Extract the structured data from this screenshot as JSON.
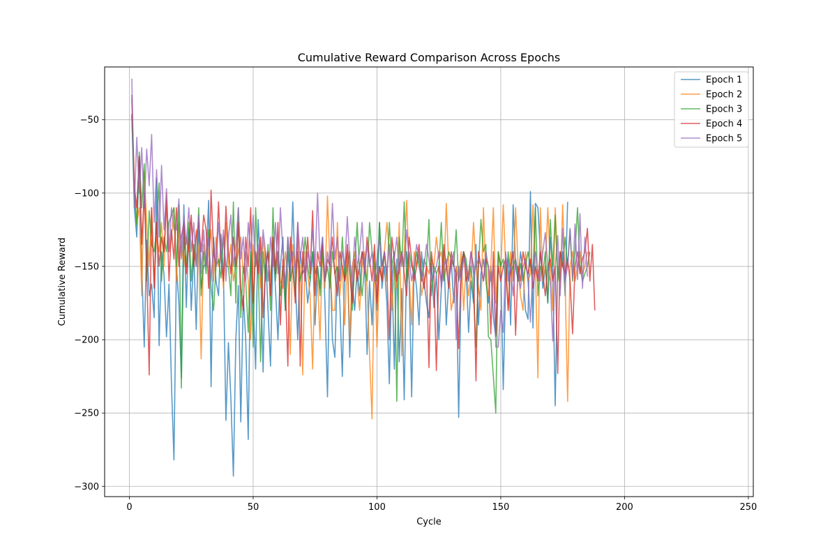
{
  "chart_data": {
    "type": "line",
    "title": "Cumulative Reward Comparison Across Epochs",
    "xlabel": "Cycle",
    "ylabel": "Cumulative Reward",
    "xlim": [
      -10,
      252
    ],
    "ylim": [
      -307,
      -14
    ],
    "xticks": [
      0,
      50,
      100,
      150,
      200,
      250
    ],
    "yticks": [
      -300,
      -250,
      -200,
      -150,
      -100,
      -50
    ],
    "grid": true,
    "legend_position": "top-right",
    "series": [
      {
        "name": "Epoch 1",
        "color": "#1f77b4",
        "x_start": 1,
        "values": [
          -46,
          -110,
          -130,
          -75,
          -150,
          -205,
          -132,
          -170,
          -162,
          -185,
          -90,
          -204,
          -140,
          -156,
          -198,
          -162,
          -230,
          -282,
          -150,
          -175,
          -226,
          -108,
          -178,
          -124,
          -180,
          -140,
          -193,
          -120,
          -165,
          -150,
          -148,
          -105,
          -232,
          -130,
          -160,
          -170,
          -128,
          -156,
          -255,
          -202,
          -240,
          -293,
          -200,
          -163,
          -256,
          -170,
          -200,
          -268,
          -140,
          -175,
          -220,
          -118,
          -150,
          -222,
          -140,
          -180,
          -218,
          -135,
          -165,
          -200,
          -150,
          -130,
          -180,
          -140,
          -160,
          -106,
          -160,
          -200,
          -140,
          -155,
          -150,
          -175,
          -160,
          -140,
          -190,
          -150,
          -165,
          -130,
          -175,
          -239,
          -140,
          -200,
          -212,
          -150,
          -175,
          -225,
          -150,
          -140,
          -212,
          -160,
          -180,
          -150,
          -170,
          -140,
          -145,
          -210,
          -160,
          -190,
          -150,
          -180,
          -120,
          -165,
          -150,
          -175,
          -230,
          -150,
          -220,
          -145,
          -215,
          -165,
          -241,
          -140,
          -160,
          -239,
          -150,
          -165,
          -190,
          -140,
          -160,
          -175,
          -185,
          -148,
          -178,
          -155,
          -200,
          -165,
          -140,
          -190,
          -160,
          -145,
          -175,
          -150,
          -253,
          -160,
          -140,
          -150,
          -195,
          -160,
          -175,
          -135,
          -190,
          -155,
          -145,
          -160,
          -175,
          -150,
          -185,
          -198,
          -140,
          -150,
          -234,
          -160,
          -145,
          -190,
          -108,
          -150,
          -160,
          -140,
          -155,
          -180,
          -186,
          -99,
          -192,
          -107,
          -110,
          -140,
          -165,
          -150,
          -175,
          -130,
          -155,
          -245,
          -150,
          -160,
          -140,
          -170,
          -106
        ]
      },
      {
        "name": "Epoch 2",
        "color": "#ff7f0e",
        "x_start": 1,
        "values": [
          -36,
          -95,
          -120,
          -110,
          -170,
          -85,
          -120,
          -150,
          -110,
          -160,
          -130,
          -140,
          -120,
          -150,
          -100,
          -140,
          -130,
          -110,
          -160,
          -120,
          -135,
          -150,
          -130,
          -140,
          -120,
          -145,
          -125,
          -140,
          -213,
          -135,
          -150,
          -140,
          -125,
          -160,
          -130,
          -150,
          -140,
          -165,
          -120,
          -150,
          -135,
          -160,
          -150,
          -140,
          -130,
          -155,
          -140,
          -160,
          -200,
          -135,
          -150,
          -140,
          -165,
          -130,
          -150,
          -140,
          -160,
          -130,
          -150,
          -140,
          -160,
          -165,
          -140,
          -155,
          -210,
          -135,
          -150,
          -145,
          -150,
          -224,
          -140,
          -155,
          -170,
          -220,
          -150,
          -160,
          -200,
          -140,
          -165,
          -102,
          -150,
          -180,
          -180,
          -120,
          -170,
          -150,
          -190,
          -140,
          -200,
          -150,
          -140,
          -160,
          -180,
          -150,
          -140,
          -165,
          -210,
          -254,
          -140,
          -205,
          -150,
          -160,
          -140,
          -120,
          -140,
          -180,
          -150,
          -165,
          -120,
          -211,
          -140,
          -105,
          -155,
          -190,
          -140,
          -150,
          -140,
          -170,
          -160,
          -150,
          -155,
          -145,
          -150,
          -130,
          -145,
          -140,
          -160,
          -107,
          -150,
          -180,
          -170,
          -150,
          -160,
          -140,
          -180,
          -150,
          -170,
          -155,
          -120,
          -150,
          -165,
          -180,
          -110,
          -160,
          -170,
          -150,
          -110,
          -175,
          -140,
          -155,
          -108,
          -150,
          -180,
          -140,
          -160,
          -110,
          -150,
          -170,
          -180,
          -140,
          -160,
          -155,
          -108,
          -150,
          -226,
          -110,
          -160,
          -150,
          -110,
          -150,
          -180,
          -110,
          -150,
          -165,
          -108,
          -160,
          -242,
          -150,
          -140,
          -160,
          -150,
          -140,
          -155,
          -150,
          -140
        ]
      },
      {
        "name": "Epoch 3",
        "color": "#2ca02c",
        "x_start": 1,
        "values": [
          -47,
          -100,
          -122,
          -72,
          -110,
          -80,
          -160,
          -112,
          -135,
          -140,
          -125,
          -93,
          -160,
          -130,
          -140,
          -120,
          -115,
          -110,
          -150,
          -108,
          -233,
          -130,
          -150,
          -120,
          -160,
          -135,
          -150,
          -110,
          -170,
          -140,
          -155,
          -125,
          -165,
          -180,
          -150,
          -145,
          -158,
          -130,
          -150,
          -150,
          -170,
          -106,
          -175,
          -110,
          -185,
          -150,
          -160,
          -195,
          -140,
          -205,
          -110,
          -150,
          -215,
          -140,
          -160,
          -135,
          -180,
          -110,
          -160,
          -140,
          -170,
          -150,
          -180,
          -130,
          -160,
          -150,
          -170,
          -140,
          -160,
          -150,
          -130,
          -150,
          -160,
          -140,
          -155,
          -150,
          -170,
          -140,
          -160,
          -150,
          -165,
          -140,
          -155,
          -150,
          -160,
          -130,
          -160,
          -150,
          -140,
          -180,
          -150,
          -120,
          -155,
          -170,
          -150,
          -160,
          -120,
          -140,
          -150,
          -160,
          -120,
          -150,
          -140,
          -160,
          -120,
          -150,
          -140,
          -242,
          -130,
          -150,
          -106,
          -160,
          -140,
          -150,
          -155,
          -140,
          -150,
          -160,
          -145,
          -150,
          -118,
          -170,
          -150,
          -155,
          -150,
          -120,
          -160,
          -150,
          -140,
          -145,
          -150,
          -125,
          -160,
          -150,
          -140,
          -145,
          -160,
          -150,
          -170,
          -205,
          -150,
          -118,
          -140,
          -135,
          -198,
          -200,
          -225,
          -250,
          -140,
          -150,
          -145,
          -160,
          -140,
          -155,
          -150,
          -145,
          -160,
          -148,
          -160,
          -150,
          -140,
          -150,
          -155,
          -110,
          -170,
          -150,
          -155,
          -140,
          -175,
          -118,
          -150,
          -115,
          -160,
          -140,
          -150,
          -130,
          -150,
          -125,
          -160,
          -140,
          -110,
          -150,
          -160,
          -155,
          -150,
          -140
        ]
      },
      {
        "name": "Epoch 4",
        "color": "#d62728",
        "x_start": 1,
        "values": [
          -33,
          -95,
          -110,
          -75,
          -135,
          -100,
          -150,
          -224,
          -110,
          -165,
          -120,
          -150,
          -130,
          -140,
          -105,
          -160,
          -125,
          -145,
          -110,
          -150,
          -130,
          -120,
          -155,
          -135,
          -115,
          -150,
          -130,
          -120,
          -140,
          -115,
          -125,
          -165,
          -98,
          -140,
          -150,
          -106,
          -145,
          -160,
          -109,
          -140,
          -155,
          -130,
          -150,
          -120,
          -165,
          -180,
          -130,
          -150,
          -110,
          -175,
          -140,
          -155,
          -130,
          -185,
          -150,
          -140,
          -170,
          -130,
          -155,
          -120,
          -190,
          -145,
          -160,
          -218,
          -130,
          -150,
          -175,
          -120,
          -218,
          -140,
          -160,
          -130,
          -155,
          -112,
          -170,
          -140,
          -150,
          -135,
          -160,
          -145,
          -150,
          -130,
          -155,
          -170,
          -140,
          -150,
          -160,
          -135,
          -155,
          -175,
          -145,
          -160,
          -150,
          -140,
          -155,
          -130,
          -145,
          -160,
          -135,
          -175,
          -150,
          -160,
          -140,
          -155,
          -200,
          -130,
          -145,
          -160,
          -150,
          -140,
          -155,
          -170,
          -130,
          -145,
          -160,
          -150,
          -135,
          -155,
          -165,
          -150,
          -219,
          -140,
          -155,
          -221,
          -150,
          -160,
          -135,
          -150,
          -165,
          -140,
          -150,
          -155,
          -206,
          -150,
          -140,
          -160,
          -155,
          -140,
          -150,
          -228,
          -140,
          -150,
          -160,
          -145,
          -150,
          -196,
          -140,
          -197,
          -150,
          -160,
          -150,
          -145,
          -180,
          -150,
          -140,
          -197,
          -150,
          -160,
          -140,
          -150,
          -155,
          -145,
          -165,
          -150,
          -160,
          -140,
          -155,
          -170,
          -150,
          -145,
          -160,
          -150,
          -223,
          -140,
          -150,
          -155,
          -145,
          -160,
          -196,
          -150,
          -140,
          -155,
          -145,
          -140,
          -124,
          -160,
          -135,
          -180
        ]
      },
      {
        "name": "Epoch 5",
        "color": "#9467bd",
        "x_start": 1,
        "values": [
          -22,
          -110,
          -62,
          -100,
          -69,
          -110,
          -70,
          -95,
          -60,
          -120,
          -84,
          -130,
          -81,
          -125,
          -97,
          -140,
          -110,
          -125,
          -125,
          -104,
          -145,
          -115,
          -135,
          -110,
          -140,
          -120,
          -150,
          -115,
          -155,
          -125,
          -150,
          -130,
          -160,
          -135,
          -150,
          -120,
          -145,
          -125,
          -160,
          -130,
          -115,
          -150,
          -135,
          -110,
          -145,
          -130,
          -160,
          -120,
          -140,
          -115,
          -150,
          -135,
          -155,
          -125,
          -140,
          -160,
          -130,
          -150,
          -120,
          -155,
          -110,
          -140,
          -165,
          -130,
          -150,
          -140,
          -155,
          -120,
          -145,
          -130,
          -160,
          -140,
          -150,
          -125,
          -150,
          -100,
          -145,
          -130,
          -160,
          -140,
          -150,
          -107,
          -145,
          -130,
          -160,
          -140,
          -150,
          -116,
          -145,
          -160,
          -130,
          -150,
          -140,
          -120,
          -155,
          -135,
          -150,
          -140,
          -160,
          -145,
          -130,
          -150,
          -140,
          -155,
          -135,
          -160,
          -145,
          -130,
          -155,
          -140,
          -150,
          -125,
          -145,
          -160,
          -150,
          -135,
          -145,
          -160,
          -150,
          -135,
          -145,
          -160,
          -155,
          -150,
          -140,
          -165,
          -150,
          -145,
          -160,
          -150,
          -140,
          -200,
          -150,
          -160,
          -145,
          -150,
          -160,
          -140,
          -155,
          -150,
          -145,
          -150,
          -160,
          -140,
          -150,
          -160,
          -150,
          -205,
          -205,
          -180,
          -195,
          -140,
          -160,
          -150,
          -170,
          -145,
          -155,
          -165,
          -150,
          -145,
          -160,
          -188,
          -150,
          -140,
          -155,
          -160,
          -140,
          -127,
          -150,
          -160,
          -201,
          -150,
          -129,
          -170,
          -124,
          -160,
          -150,
          -124,
          -158,
          -121,
          -159,
          -114,
          -165,
          -130,
          -157
        ]
      }
    ]
  }
}
